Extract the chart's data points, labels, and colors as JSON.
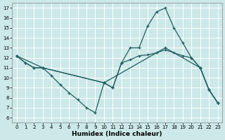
{
  "xlabel": "Humidex (Indice chaleur)",
  "bg_color": "#cce8e8",
  "line_color": "#206060",
  "xlim": [
    -0.5,
    23.5
  ],
  "ylim": [
    5.5,
    17.5
  ],
  "xticks": [
    0,
    1,
    2,
    3,
    4,
    5,
    6,
    7,
    8,
    9,
    10,
    11,
    12,
    13,
    14,
    15,
    16,
    17,
    18,
    19,
    20,
    21,
    22,
    23
  ],
  "yticks": [
    6,
    7,
    8,
    9,
    10,
    11,
    12,
    13,
    14,
    15,
    16,
    17
  ],
  "figsize": [
    3.2,
    2.0
  ],
  "dpi": 100,
  "series": [
    {
      "x": [
        0,
        1,
        2,
        3,
        4,
        5,
        6,
        7,
        8,
        9,
        10,
        11,
        12,
        13,
        14,
        15,
        16,
        17,
        18,
        19,
        20,
        21,
        22,
        23
      ],
      "y": [
        12.2,
        11.5,
        11.0,
        11.0,
        10.2,
        9.3,
        8.5,
        7.8,
        7.0,
        6.5,
        9.5,
        9.0,
        11.5,
        13.0,
        13.0,
        15.2,
        16.6,
        17.0,
        15.0,
        13.5,
        12.0,
        11.0,
        8.8,
        7.5
      ]
    },
    {
      "x": [
        0,
        1,
        2,
        3,
        10,
        11,
        12,
        13,
        14,
        15,
        16,
        17,
        18,
        19,
        20,
        21,
        22,
        23
      ],
      "y": [
        12.2,
        11.5,
        11.0,
        11.0,
        9.5,
        9.0,
        11.5,
        11.8,
        12.2,
        12.3,
        12.5,
        12.8,
        12.5,
        12.2,
        12.0,
        11.0,
        8.8,
        7.5
      ]
    },
    {
      "x": [
        0,
        3,
        10,
        17,
        21,
        22,
        23
      ],
      "y": [
        12.2,
        11.0,
        9.5,
        13.0,
        11.0,
        8.8,
        7.5
      ]
    }
  ]
}
